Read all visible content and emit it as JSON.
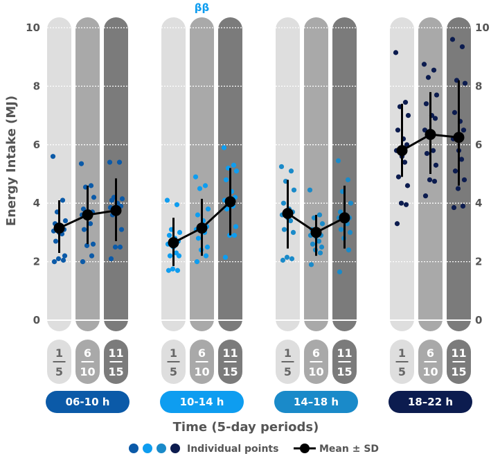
{
  "chart_data": {
    "type": "scatter",
    "ylabel": "Energy Intake (MJ)",
    "xlabel": "Time (5-day periods)",
    "ylim": [
      0,
      10
    ],
    "yticks": [
      0,
      2,
      4,
      6,
      8,
      10
    ],
    "period_labels": [
      {
        "top": "1",
        "bottom": "5"
      },
      {
        "top": "6",
        "bottom": "10"
      },
      {
        "top": "11",
        "bottom": "15"
      }
    ],
    "grid": "dotted white horizontal lines inside columns",
    "legend": {
      "position": "bottom",
      "points_label": "Individual points",
      "mean_label": "Mean ± SD"
    },
    "colors": {
      "column_shades": [
        "#dedede",
        "#a9a9a9",
        "#7b7b7b"
      ],
      "axis_text": "#555555",
      "mean_line": "#000000"
    },
    "groups": [
      {
        "label": "06-10 h",
        "color": "#0b5aa8",
        "annotation": "",
        "periods": [
          {
            "mean": 3.15,
            "sd_low": 2.3,
            "sd_high": 4.1,
            "points": [
              5.6,
              4.1,
              3.7,
              3.4,
              3.3,
              3.1,
              3.1,
              3.05,
              3.0,
              2.95,
              2.7,
              2.2,
              2.1,
              2.05,
              2.0
            ]
          },
          {
            "mean": 3.6,
            "sd_low": 2.6,
            "sd_high": 4.6,
            "points": [
              5.35,
              4.6,
              4.55,
              4.2,
              3.8,
              3.7,
              3.7,
              3.6,
              3.5,
              3.3,
              3.1,
              2.6,
              2.55,
              2.2,
              2.0
            ]
          },
          {
            "mean": 3.75,
            "sd_low": 2.7,
            "sd_high": 4.85,
            "points": [
              5.4,
              5.4,
              4.2,
              4.15,
              4.1,
              4.0,
              3.9,
              3.85,
              3.8,
              3.75,
              3.6,
              3.1,
              2.5,
              2.5,
              2.1
            ]
          }
        ]
      },
      {
        "label": "10-14 h",
        "color": "#0e9df0",
        "annotation": "ββ",
        "periods": [
          {
            "mean": 2.65,
            "sd_low": 1.85,
            "sd_high": 3.5,
            "points": [
              4.1,
              3.95,
              3.1,
              3.0,
              2.9,
              2.8,
              2.7,
              2.6,
              2.5,
              2.3,
              2.2,
              2.2,
              1.75,
              1.7,
              1.7
            ]
          },
          {
            "mean": 3.15,
            "sd_low": 2.2,
            "sd_high": 4.15,
            "points": [
              4.9,
              4.6,
              4.5,
              3.8,
              3.6,
              3.4,
              3.2,
              3.1,
              3.05,
              3.0,
              2.8,
              2.5,
              2.4,
              2.2,
              2.0
            ]
          },
          {
            "mean": 4.05,
            "sd_low": 2.9,
            "sd_high": 5.2,
            "points": [
              5.9,
              5.3,
              5.2,
              5.1,
              4.8,
              4.4,
              4.2,
              4.1,
              4.0,
              3.9,
              3.8,
              3.2,
              2.9,
              2.9,
              2.15
            ]
          }
        ]
      },
      {
        "label": "14–18 h",
        "color": "#1a8ac9",
        "annotation": "",
        "periods": [
          {
            "mean": 3.65,
            "sd_low": 2.45,
            "sd_high": 4.8,
            "points": [
              5.25,
              5.1,
              4.75,
              4.45,
              4.0,
              3.8,
              3.7,
              3.6,
              3.5,
              3.4,
              3.1,
              3.0,
              2.15,
              2.1,
              2.05
            ]
          },
          {
            "mean": 3.0,
            "sd_low": 2.2,
            "sd_high": 3.6,
            "points": [
              4.45,
              3.6,
              3.5,
              3.3,
              3.1,
              3.0,
              2.9,
              2.9,
              2.85,
              2.7,
              2.6,
              2.5,
              2.4,
              2.3,
              1.9
            ]
          },
          {
            "mean": 3.5,
            "sd_low": 2.45,
            "sd_high": 4.6,
            "points": [
              5.45,
              4.8,
              4.4,
              4.0,
              3.7,
              3.6,
              3.5,
              3.5,
              3.4,
              3.3,
              3.1,
              3.0,
              2.8,
              2.4,
              1.65
            ]
          }
        ]
      },
      {
        "label": "18–22 h",
        "color": "#0c1c4f",
        "annotation": "",
        "periods": [
          {
            "mean": 5.8,
            "sd_low": 4.9,
            "sd_high": 7.4,
            "points": [
              9.15,
              7.45,
              7.3,
              7.0,
              6.5,
              6.2,
              6.0,
              5.8,
              5.6,
              5.4,
              4.9,
              4.6,
              4.0,
              3.95,
              3.3
            ]
          },
          {
            "mean": 6.35,
            "sd_low": 5.0,
            "sd_high": 7.8,
            "points": [
              8.75,
              8.55,
              8.3,
              7.7,
              7.4,
              7.0,
              6.9,
              6.5,
              6.3,
              5.8,
              5.7,
              5.3,
              4.8,
              4.75,
              4.25
            ]
          },
          {
            "mean": 6.25,
            "sd_low": 4.6,
            "sd_high": 8.2,
            "points": [
              9.6,
              9.35,
              8.2,
              8.1,
              7.1,
              6.8,
              6.5,
              6.2,
              5.8,
              5.5,
              5.1,
              4.8,
              4.5,
              3.9,
              3.85
            ]
          }
        ]
      }
    ]
  }
}
